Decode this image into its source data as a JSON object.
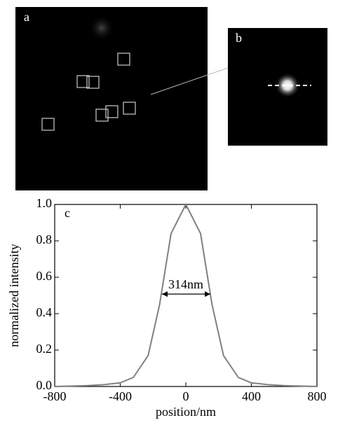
{
  "panel_labels": {
    "a": "a",
    "b": "b"
  },
  "chart_data": {
    "type": "line",
    "panel_label": "c",
    "xlabel": "position/nm",
    "ylabel": "normalized intensity",
    "x": [
      -800,
      -600,
      -500,
      -400,
      -320,
      -230,
      -160,
      -90,
      0,
      90,
      160,
      230,
      320,
      400,
      500,
      600,
      800
    ],
    "values": [
      0,
      0.005,
      0.01,
      0.02,
      0.05,
      0.17,
      0.45,
      0.84,
      1.0,
      0.84,
      0.45,
      0.17,
      0.05,
      0.02,
      0.01,
      0.005,
      0
    ],
    "color": "#808080",
    "xlim": [
      -800,
      800
    ],
    "xticks": [
      -800,
      -400,
      0,
      400,
      800
    ],
    "ylim": [
      0,
      1
    ],
    "yticks": [
      {
        "value": 0,
        "label": "0.0"
      },
      0.2,
      0.4,
      0.6,
      0.8,
      {
        "value": 1,
        "label": "1.0"
      }
    ],
    "annotation": "314nm"
  }
}
